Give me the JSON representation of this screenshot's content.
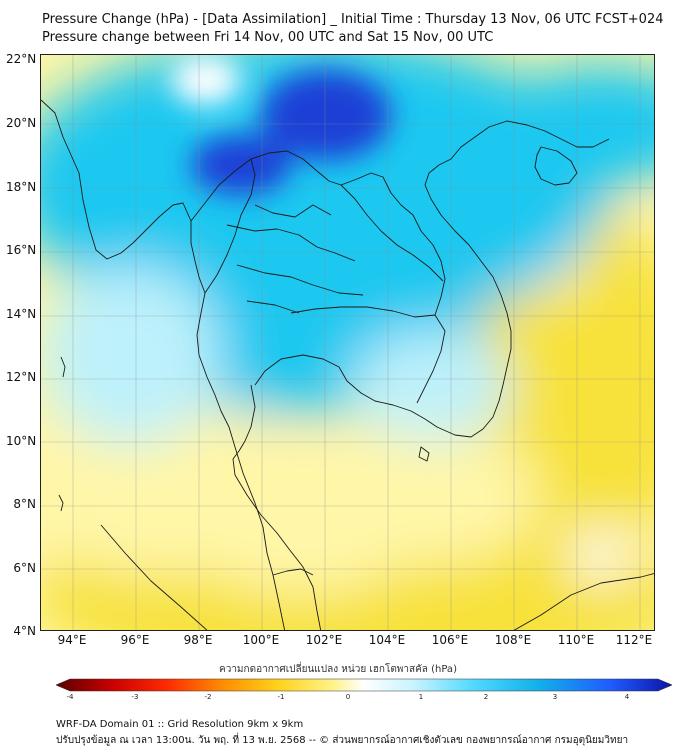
{
  "header": {
    "title_line1": "Pressure Change (hPa) - [Data Assimilation] _ Initial Time : Thursday 13 Nov, 06 UTC FCST+024",
    "title_line2": "Pressure change between Fri 14 Nov, 00 UTC and Sat 15 Nov, 00 UTC"
  },
  "map": {
    "lat_range": [
      4,
      22
    ],
    "lon_range": [
      93,
      112.5
    ],
    "lat_ticks": [
      "22°N",
      "20°N",
      "18°N",
      "16°N",
      "14°N",
      "12°N",
      "10°N",
      "8°N",
      "6°N",
      "4°N"
    ],
    "lon_ticks": [
      "94°E",
      "96°E",
      "98°E",
      "100°E",
      "102°E",
      "104°E",
      "106°E",
      "108°E",
      "110°E",
      "112°E"
    ],
    "field_colors": {
      "strong_rise": "#1a3fd6",
      "rise": "#1ec8f0",
      "slight_rise": "#bdf1fb",
      "neutral": "#ffffff",
      "slight_fall": "#fff6a8",
      "fall": "#f7e23a"
    },
    "grid": true
  },
  "colorbar": {
    "title": "ความกดอากาศเปลี่ยนแปลง หน่วย เฮกโตพาสคัล (hPa)",
    "min": -4,
    "max": 4,
    "tick_labels": [
      "-4",
      "-3",
      "-2",
      "-1",
      "0",
      "1",
      "2",
      "3",
      "4"
    ],
    "colors": [
      "#5a0000",
      "#c80000",
      "#ff2a00",
      "#ff8c00",
      "#ffd21a",
      "#fff38a",
      "#ffffff",
      "#c8f4ff",
      "#4fd8ff",
      "#12b2ea",
      "#1f5cff",
      "#0c14a8"
    ]
  },
  "footer": {
    "line1": "WRF-DA Domain 01 :: Grid Resolution 9km x 9km",
    "line2": "ปรับปรุงข้อมูล ณ เวลา 13:00น. วัน พฤ. ที่ 13 พ.ย. 2568 -- © ส่วนพยากรณ์อากาศเชิงตัวเลข กองพยากรณ์อากาศ กรมอุตุนิยมวิทยา"
  }
}
